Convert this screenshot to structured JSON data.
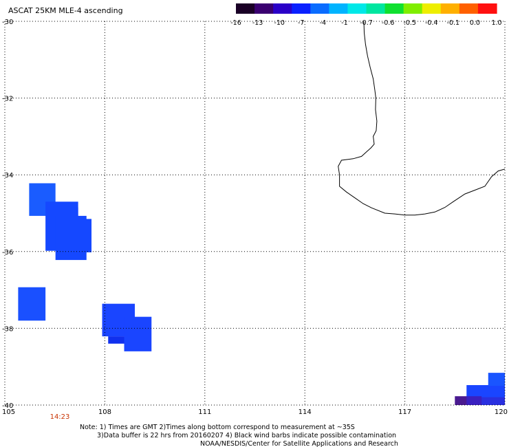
{
  "title": "ASCAT 25KM MLE-4 ascending",
  "colorbar": {
    "tick_labels": [
      "-16",
      "-13",
      "-10",
      "-7",
      "-4",
      "-1",
      "-0.7",
      "-0.6",
      "-0.5",
      "-0.4",
      "-0.1",
      "0.0",
      "1.0"
    ],
    "colors": [
      "#1a0026",
      "#3a0070",
      "#2a00c8",
      "#0a20ff",
      "#0a6cff",
      "#00b4ff",
      "#00e8e8",
      "#00e6a0",
      "#10e030",
      "#80ee00",
      "#eeee00",
      "#ffb000",
      "#ff6000",
      "#ff1010"
    ]
  },
  "axes": {
    "lon_labels": [
      "105",
      "108",
      "111",
      "114",
      "117",
      "120"
    ],
    "lat_labels": [
      "-30",
      "-32",
      "-34",
      "-36",
      "-38",
      "-40"
    ],
    "lon_range": [
      105,
      120
    ],
    "lat_range": [
      -30,
      -40
    ]
  },
  "time_label": "14:23",
  "time_label_color": "#c83200",
  "notes": [
    "Note: 1) Times are GMT 2)Times along bottom correspond to measurement at ~35S",
    "3)Data buffer is 22 hrs from 20160207 4) Black wind barbs indicate possible contamination",
    "NOAA/NESDIS/Center for Satellite Applications and Research"
  ],
  "swath_cells": [
    {
      "lon": [
        105.73,
        106.52
      ],
      "lat": [
        -34.22,
        -35.07
      ],
      "color": "#1a5cff"
    },
    {
      "lon": [
        106.22,
        107.2
      ],
      "lat": [
        -34.7,
        -35.98
      ],
      "color": "#1548ff"
    },
    {
      "lon": [
        106.52,
        107.45
      ],
      "lat": [
        -35.07,
        -36.22
      ],
      "color": "#1548ff"
    },
    {
      "lon": [
        107.2,
        107.6
      ],
      "lat": [
        -35.15,
        -36.02
      ],
      "color": "#1548ff"
    },
    {
      "lon": [
        106.98,
        107.2
      ],
      "lat": [
        -34.85,
        -35.15
      ],
      "color": "#1548ff"
    },
    {
      "lon": [
        105.4,
        106.22
      ],
      "lat": [
        -36.93,
        -37.8
      ],
      "color": "#1a50ff"
    },
    {
      "lon": [
        107.92,
        108.9
      ],
      "lat": [
        -37.36,
        -38.21
      ],
      "color": "#1a45ff"
    },
    {
      "lon": [
        108.1,
        108.9
      ],
      "lat": [
        -38.21,
        -38.4
      ],
      "color": "#1030ee"
    },
    {
      "lon": [
        108.58,
        109.4
      ],
      "lat": [
        -37.7,
        -38.6
      ],
      "color": "#1a45ff"
    },
    {
      "lon": [
        118.5,
        120
      ],
      "lat": [
        -39.77,
        -40.29
      ],
      "color": "#4a1a90"
    },
    {
      "lon": [
        118.85,
        120
      ],
      "lat": [
        -39.48,
        -39.8
      ],
      "color": "#1a45ff"
    },
    {
      "lon": [
        119.5,
        120
      ],
      "lat": [
        -39.16,
        -39.5
      ],
      "color": "#1a55ff"
    },
    {
      "lon": [
        119.3,
        120
      ],
      "lat": [
        -39.8,
        -40.0
      ],
      "color": "#2a30e0"
    },
    {
      "lon": [
        118.85,
        119.3
      ],
      "lat": [
        -39.77,
        -40.0
      ],
      "color": "#3a20c0"
    }
  ],
  "coastline": [
    [
      115.77,
      -30.0
    ],
    [
      115.78,
      -30.3
    ],
    [
      115.82,
      -30.6
    ],
    [
      115.88,
      -30.9
    ],
    [
      115.96,
      -31.2
    ],
    [
      116.05,
      -31.5
    ],
    [
      116.1,
      -31.8
    ],
    [
      116.13,
      -32.0
    ],
    [
      116.12,
      -32.3
    ],
    [
      116.16,
      -32.6
    ],
    [
      116.14,
      -32.85
    ],
    [
      116.05,
      -33.0
    ],
    [
      116.08,
      -33.2
    ],
    [
      115.98,
      -33.3
    ],
    [
      115.85,
      -33.4
    ],
    [
      115.7,
      -33.52
    ],
    [
      115.45,
      -33.58
    ],
    [
      115.1,
      -33.62
    ],
    [
      115.0,
      -33.78
    ],
    [
      115.04,
      -34.0
    ],
    [
      115.04,
      -34.3
    ],
    [
      115.25,
      -34.45
    ],
    [
      115.5,
      -34.6
    ],
    [
      115.75,
      -34.75
    ],
    [
      116.0,
      -34.86
    ],
    [
      116.4,
      -35.0
    ],
    [
      116.7,
      -35.02
    ],
    [
      117.0,
      -35.05
    ],
    [
      117.3,
      -35.05
    ],
    [
      117.6,
      -35.02
    ],
    [
      117.9,
      -34.97
    ],
    [
      118.2,
      -34.85
    ],
    [
      118.45,
      -34.7
    ],
    [
      118.8,
      -34.5
    ],
    [
      119.1,
      -34.4
    ],
    [
      119.4,
      -34.3
    ],
    [
      119.6,
      -34.05
    ],
    [
      119.8,
      -33.9
    ],
    [
      120.0,
      -33.85
    ]
  ]
}
